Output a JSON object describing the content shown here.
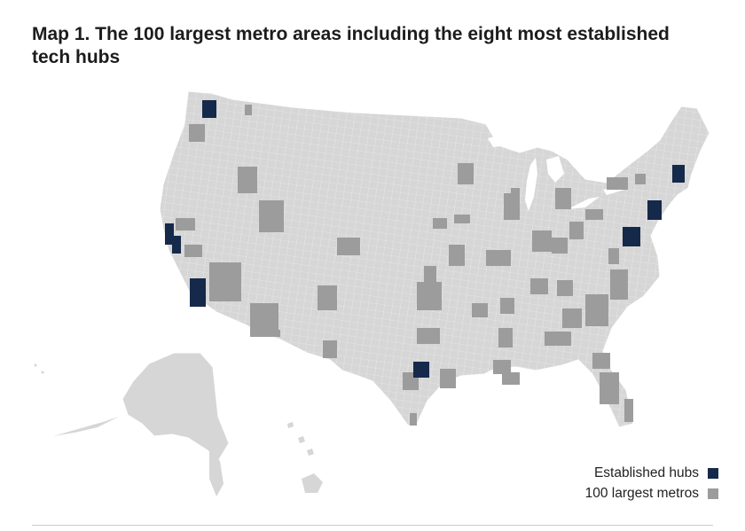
{
  "title": "Map 1. The 100 largest metro areas including the eight most established tech hubs",
  "colors": {
    "land": "#d6d6d6",
    "border": "#ffffff",
    "established": "#15294a",
    "metro": "#9c9c9c"
  },
  "legend": [
    {
      "label": "Established hubs",
      "color": "#15294a"
    },
    {
      "label": "100 largest metros",
      "color": "#9c9c9c"
    }
  ]
}
